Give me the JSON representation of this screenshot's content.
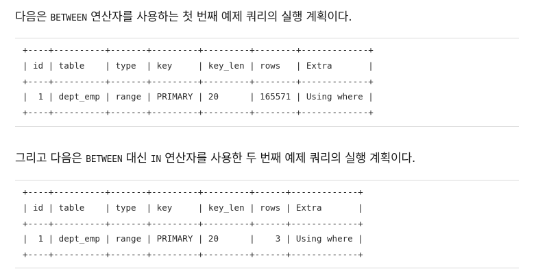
{
  "section1": {
    "intro_before": "다음은 ",
    "intro_keyword": "BETWEEN",
    "intro_after": " 연산자를 사용하는 첫 번째 예제 쿼리의 실행 계획이다.",
    "plan_lines": [
      "+----+----------+-------+---------+---------+--------+-------------+",
      "| id | table    | type  | key     | key_len | rows   | Extra       |",
      "+----+----------+-------+---------+---------+--------+-------------+",
      "|  1 | dept_emp | range | PRIMARY | 20      | 165571 | Using where |",
      "+----+----------+-------+---------+---------+--------+-------------+"
    ]
  },
  "section2": {
    "intro_before": "그리고 다음은 ",
    "intro_keyword": "BETWEEN",
    "intro_middle": " 대신 ",
    "intro_keyword2": "IN",
    "intro_after": " 연산자를 사용한 두 번째 예제 쿼리의 실행 계획이다.",
    "plan_lines": [
      "+----+----------+-------+---------+---------+------+-------------+",
      "| id | table    | type  | key     | key_len | rows | Extra       |",
      "+----+----------+-------+---------+---------+------+-------------+",
      "|  1 | dept_emp | range | PRIMARY | 20      |    3 | Using where |",
      "+----+----------+-------+---------+---------+------+-------------+"
    ]
  }
}
